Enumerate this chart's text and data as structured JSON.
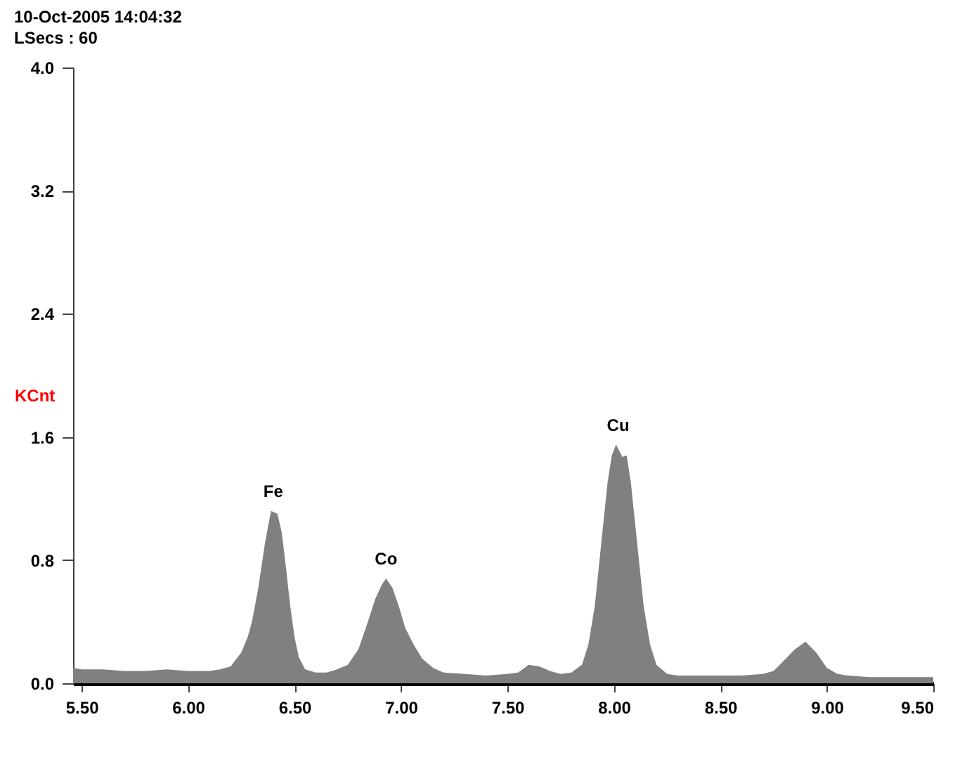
{
  "chart_data": {
    "type": "area",
    "title": "10-Oct-2005 14:04:32",
    "subtitle": "LSecs :  60",
    "ylabel": "KCnt",
    "x": [
      5.46,
      5.5,
      5.6,
      5.7,
      5.8,
      5.9,
      6.0,
      6.1,
      6.15,
      6.2,
      6.25,
      6.28,
      6.3,
      6.33,
      6.36,
      6.38,
      6.39,
      6.42,
      6.44,
      6.46,
      6.48,
      6.5,
      6.52,
      6.55,
      6.6,
      6.65,
      6.7,
      6.75,
      6.8,
      6.84,
      6.88,
      6.91,
      6.93,
      6.96,
      6.99,
      7.02,
      7.06,
      7.1,
      7.15,
      7.2,
      7.3,
      7.4,
      7.5,
      7.55,
      7.6,
      7.65,
      7.7,
      7.75,
      7.8,
      7.85,
      7.88,
      7.91,
      7.94,
      7.97,
      7.99,
      8.01,
      8.04,
      8.06,
      8.08,
      8.11,
      8.14,
      8.17,
      8.2,
      8.25,
      8.3,
      8.4,
      8.5,
      8.6,
      8.7,
      8.75,
      8.8,
      8.85,
      8.9,
      8.95,
      9.0,
      9.05,
      9.1,
      9.2,
      9.3,
      9.4,
      9.5
    ],
    "series": [
      {
        "color": "#808080",
        "values": [
          0.1,
          0.09,
          0.09,
          0.08,
          0.08,
          0.09,
          0.08,
          0.08,
          0.09,
          0.11,
          0.2,
          0.3,
          0.4,
          0.62,
          0.9,
          1.05,
          1.12,
          1.1,
          0.98,
          0.75,
          0.5,
          0.3,
          0.17,
          0.09,
          0.07,
          0.07,
          0.09,
          0.12,
          0.22,
          0.38,
          0.55,
          0.64,
          0.68,
          0.62,
          0.5,
          0.36,
          0.25,
          0.16,
          0.1,
          0.07,
          0.06,
          0.05,
          0.06,
          0.07,
          0.12,
          0.11,
          0.08,
          0.06,
          0.07,
          0.12,
          0.25,
          0.5,
          0.9,
          1.3,
          1.48,
          1.55,
          1.47,
          1.48,
          1.3,
          0.9,
          0.5,
          0.25,
          0.12,
          0.06,
          0.05,
          0.05,
          0.05,
          0.05,
          0.06,
          0.08,
          0.15,
          0.22,
          0.27,
          0.2,
          0.1,
          0.06,
          0.05,
          0.04,
          0.04,
          0.04,
          0.04
        ]
      }
    ],
    "annotations": [
      {
        "text": "Fe",
        "x": 6.4,
        "y": 1.12
      },
      {
        "text": "Co",
        "x": 6.93,
        "y": 0.68
      },
      {
        "text": "Cu",
        "x": 8.02,
        "y": 1.55
      }
    ],
    "xlim": [
      5.46,
      9.5
    ],
    "ylim": [
      0,
      4.0
    ],
    "xticks": [
      {
        "value": 5.5,
        "label": "5.50"
      },
      {
        "value": 6.0,
        "label": "6.00"
      },
      {
        "value": 6.5,
        "label": "6.50"
      },
      {
        "value": 7.0,
        "label": "7.00"
      },
      {
        "value": 7.5,
        "label": "7.50"
      },
      {
        "value": 8.0,
        "label": "8.00"
      },
      {
        "value": 8.5,
        "label": "8.50"
      },
      {
        "value": 9.0,
        "label": "9.00"
      },
      {
        "value": 9.5,
        "label": "9.50"
      }
    ],
    "yticks": [
      {
        "value": 0,
        "label": "0.0"
      },
      {
        "value": 0.8,
        "label": "0.8"
      },
      {
        "value": 1.6,
        "label": "1.6"
      },
      {
        "value": 2.4,
        "label": "2.4"
      },
      {
        "value": 3.2,
        "label": "3.2"
      },
      {
        "value": 4.0,
        "label": "4.0"
      }
    ],
    "grid": false
  }
}
